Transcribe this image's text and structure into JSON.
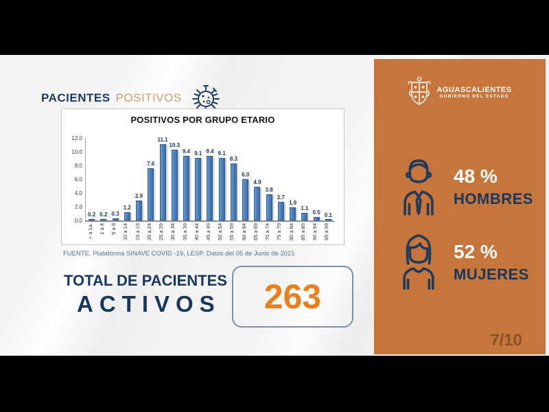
{
  "header": {
    "title_primary": "PACIENTES",
    "title_secondary": "POSITIVOS"
  },
  "chart_data": {
    "type": "bar",
    "title": "POSITIVOS POR GRUPO ETARIO",
    "categories": [
      "< a 1a.",
      "1 a 4",
      "5 a 9",
      "10 a 14",
      "15 a 19",
      "20 a 24",
      "25 a 29",
      "30 a 34",
      "35 a 39",
      "40 a 44",
      "45 a 49",
      "50 a 54",
      "55 a 59",
      "60 a 64",
      "65 a 69",
      "70 a 74",
      "75 a 79",
      "80 a 84",
      "85 a 89",
      "90 a 94",
      "95 a 99"
    ],
    "values": [
      0.2,
      0.2,
      0.3,
      1.2,
      2.9,
      7.6,
      11.1,
      10.3,
      9.4,
      9.1,
      9.4,
      9.1,
      8.3,
      6.0,
      4.9,
      3.8,
      2.7,
      1.9,
      1.1,
      0.5,
      0.1
    ],
    "xlabel": "",
    "ylabel": "",
    "ylim": [
      0,
      12
    ],
    "yticks": [
      "12.0",
      "10.0",
      "8.0",
      "6.0",
      "4.0",
      "2.0",
      "0.0"
    ],
    "grid": false,
    "data_labels": true,
    "bar_color": "#4F81BD",
    "legend_position": "none"
  },
  "source_note": "FUENTE. Plataforma SINAVE COVID -19, LESP. Datos del 05 de Junio de 2021",
  "total": {
    "label_line1": "TOTAL DE PACIENTES",
    "label_line2": "ACTIVOS",
    "value": "263"
  },
  "sidebar": {
    "logo": {
      "name": "AGUASCALIENTES",
      "subtitle": "GOBIERNO DEL ESTADO"
    },
    "stats": [
      {
        "icon": "man-icon",
        "value": "48 %",
        "label": "HOMBRES"
      },
      {
        "icon": "woman-icon",
        "value": "52 %",
        "label": "MUJERES"
      }
    ],
    "page_indicator": "7/10"
  },
  "icons": {
    "virus": "virus-icon",
    "man": "man-icon",
    "woman": "woman-icon",
    "crest": "state-crest-icon"
  },
  "colors": {
    "panel_orange": "#C6763A",
    "navy": "#17375E",
    "accent_orange": "#E8801E",
    "tan": "#C8A078",
    "bar_blue": "#4F81BD",
    "letterbox_black": "#000000"
  }
}
